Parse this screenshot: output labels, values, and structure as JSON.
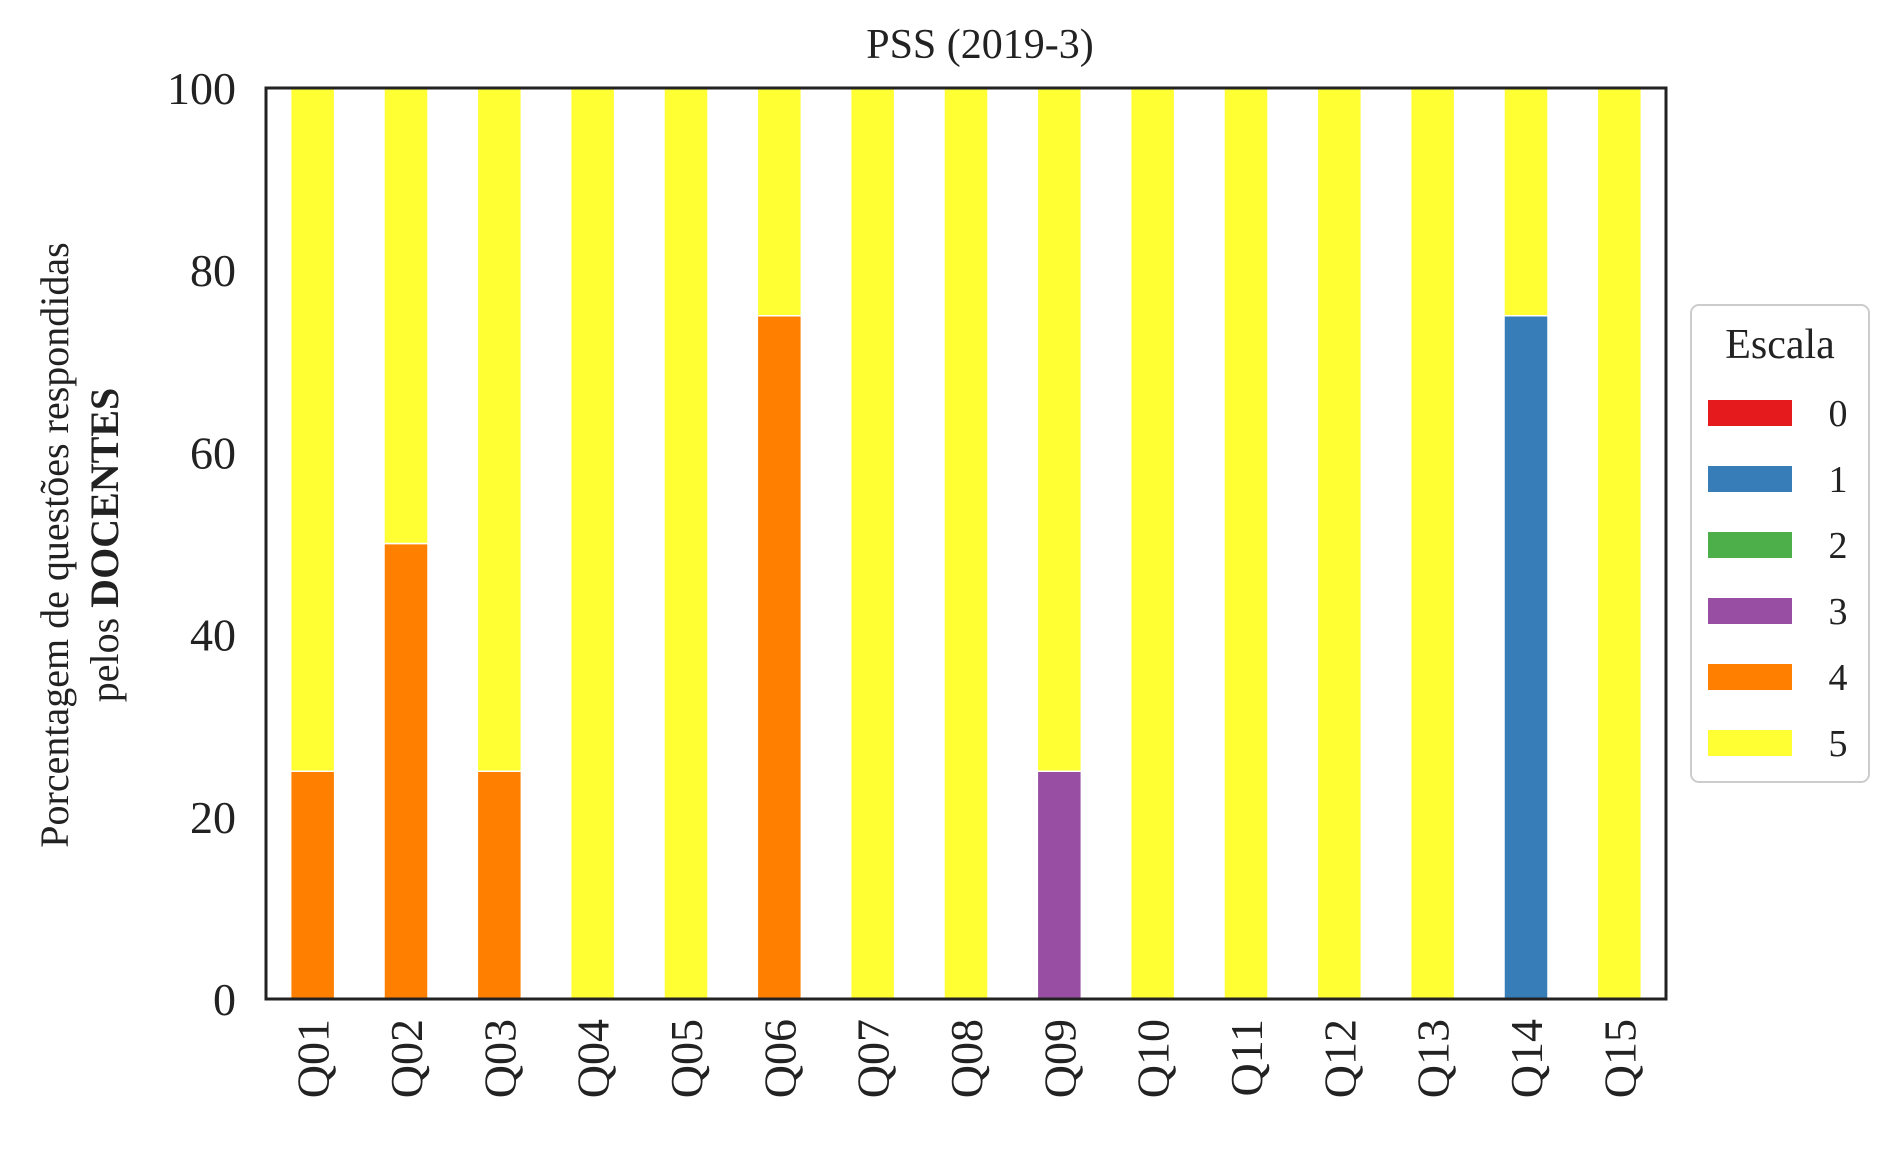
{
  "chart_data": {
    "type": "bar",
    "stacked": true,
    "title": "PSS (2019-3)",
    "ylabel_line1": "Porcentagem de questões respondidas",
    "ylabel_line2_prefix": "pelos ",
    "ylabel_line2_bold": "DOCENTES",
    "xlabel": "",
    "ylim": [
      0,
      100
    ],
    "yticks": [
      "0",
      "20",
      "40",
      "60",
      "80",
      "100"
    ],
    "grid": false,
    "categories": [
      "Q01",
      "Q02",
      "Q03",
      "Q04",
      "Q05",
      "Q06",
      "Q07",
      "Q08",
      "Q09",
      "Q10",
      "Q11",
      "Q12",
      "Q13",
      "Q14",
      "Q15"
    ],
    "legend": {
      "title": "Escala",
      "placement": "right"
    },
    "series": [
      {
        "name": "0",
        "color": "#e41a1c",
        "values": [
          0,
          0,
          0,
          0,
          0,
          0,
          0,
          0,
          0,
          0,
          0,
          0,
          0,
          0,
          0
        ]
      },
      {
        "name": "1",
        "color": "#377eb8",
        "values": [
          0,
          0,
          0,
          0,
          0,
          0,
          0,
          0,
          0,
          0,
          0,
          0,
          0,
          75,
          0
        ]
      },
      {
        "name": "2",
        "color": "#4daf4a",
        "values": [
          0,
          0,
          0,
          0,
          0,
          0,
          0,
          0,
          0,
          0,
          0,
          0,
          0,
          0,
          0
        ]
      },
      {
        "name": "3",
        "color": "#984ea3",
        "values": [
          0,
          0,
          0,
          0,
          0,
          0,
          0,
          0,
          25,
          0,
          0,
          0,
          0,
          0,
          0
        ]
      },
      {
        "name": "4",
        "color": "#ff7f00",
        "values": [
          25,
          50,
          25,
          0,
          0,
          75,
          0,
          0,
          0,
          0,
          0,
          0,
          0,
          0,
          0
        ]
      },
      {
        "name": "5",
        "color": "#ffff33",
        "values": [
          75,
          50,
          75,
          100,
          100,
          25,
          100,
          100,
          75,
          100,
          100,
          100,
          100,
          25,
          100
        ]
      }
    ]
  }
}
